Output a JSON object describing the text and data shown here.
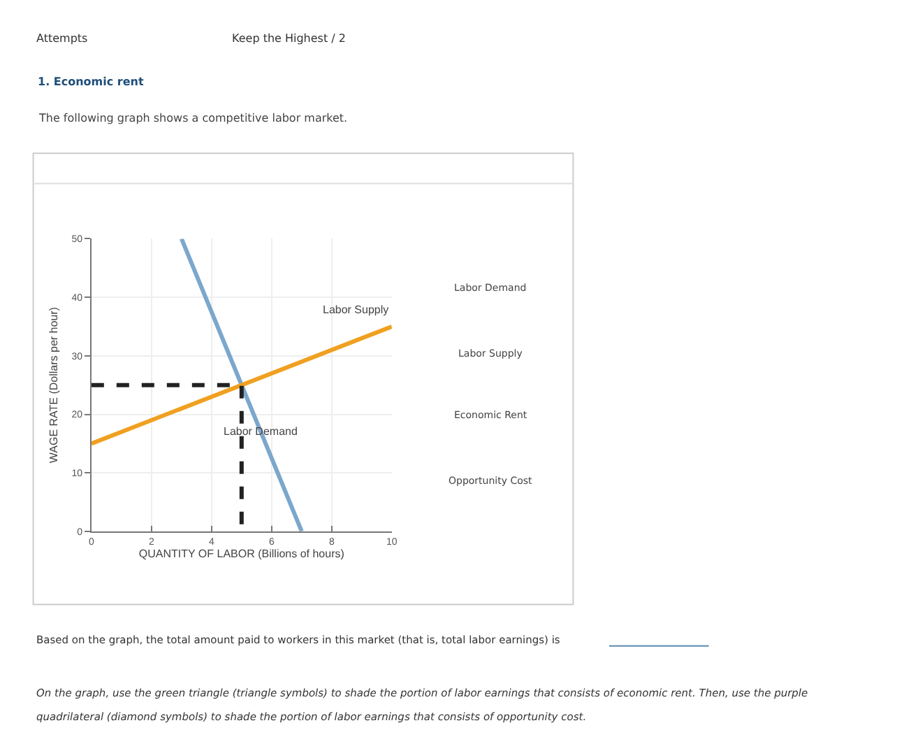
{
  "chart_data": {
    "type": "line",
    "title": "1. Economic rent",
    "subtitle": "The following graph shows a competitive labor market.",
    "xlabel": "QUANTITY OF LABOR (Billions of hours)",
    "ylabel": "WAGE RATE (Dollars per hour)",
    "xlim": [
      0,
      10
    ],
    "xticks": [
      0,
      2,
      4,
      6,
      8,
      10
    ],
    "ylim": [
      0,
      50
    ],
    "yticks": [
      0,
      10,
      20,
      30,
      40,
      50
    ],
    "grid": true,
    "marker": "none",
    "series": [
      {
        "color": "#7ba7cc",
        "x": [
          3,
          7
        ],
        "values": [
          50,
          0
        ],
        "line_style": "solid"
      },
      {
        "color": "#f0a020",
        "x": [
          0,
          10
        ],
        "values": [
          15,
          35
        ],
        "line_style": "solid"
      },
      {
        "color": "#222222",
        "x": [
          0,
          5,
          5
        ],
        "values": [
          25,
          25,
          0
        ],
        "line_style": "dashed"
      }
    ],
    "annotations": [
      {
        "text": "Labor Supply",
        "x": 10,
        "y": 35
      },
      {
        "text": "Labor Demand",
        "x": 5.64,
        "y": 17
      },
      "Attempts",
      "Keep the Highest / 2",
      "Labor Demand",
      "Labor Supply",
      "Economic Rent",
      "Opportunity Cost",
      "Based on the graph, the total amount paid to workers in this market (that is, total labor earnings) is",
      "On the graph, use the green triangle (triangle symbols) to shade the portion of labor earnings that consists of economic rent. Then, use the purple",
      "quadrilateral (diamond symbols) to shade the portion of labor earnings that consists of opportunity cost."
    ]
  }
}
